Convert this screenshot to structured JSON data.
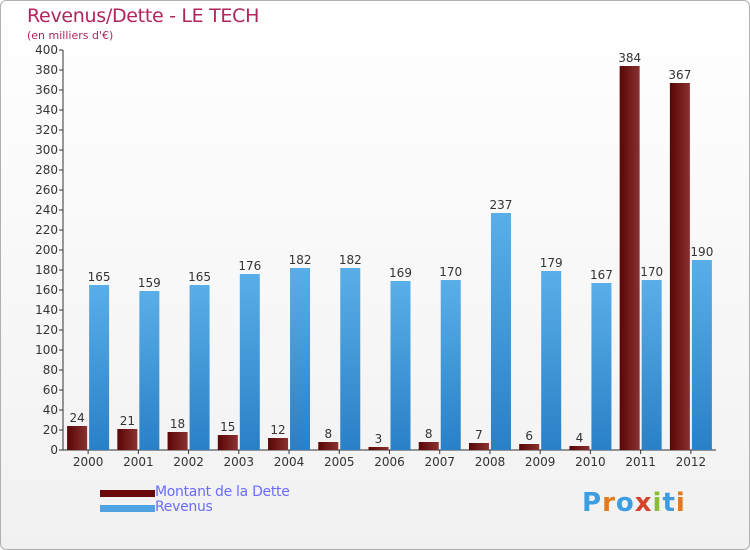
{
  "chart_data": {
    "type": "bar",
    "title": "Revenus/Dette - LE TECH",
    "subtitle": "(en milliers d'€)",
    "categories": [
      "2000",
      "2001",
      "2002",
      "2003",
      "2004",
      "2005",
      "2006",
      "2007",
      "2008",
      "2009",
      "2010",
      "2011",
      "2012"
    ],
    "series": [
      {
        "name": "Montant de la Dette",
        "values": [
          24,
          21,
          18,
          15,
          12,
          8,
          3,
          8,
          7,
          6,
          4,
          384,
          367
        ]
      },
      {
        "name": "Revenus",
        "values": [
          165,
          159,
          165,
          176,
          182,
          182,
          169,
          170,
          237,
          179,
          167,
          170,
          190
        ]
      }
    ],
    "ylim": [
      0,
      400
    ],
    "yticks": [
      0,
      20,
      40,
      60,
      80,
      100,
      120,
      140,
      160,
      180,
      200,
      220,
      240,
      260,
      280,
      300,
      320,
      340,
      360,
      380,
      400
    ],
    "grid": false,
    "legend_position": "bottom-left",
    "colors": {
      "dette": "#6b0a0a",
      "dette_light": "#8e3a3a",
      "revenus": "#4fa3e3",
      "revenus_dark": "#2a82c9"
    }
  },
  "logo": {
    "text": "Proxiti",
    "letters": [
      "P",
      "r",
      "o",
      "x",
      "i",
      "t",
      "i"
    ],
    "colors": [
      "#3c9ee0",
      "#e07b20",
      "#3c9ee0",
      "#d4442a",
      "#8bbf32",
      "#3c9ee0",
      "#e07b20"
    ]
  }
}
